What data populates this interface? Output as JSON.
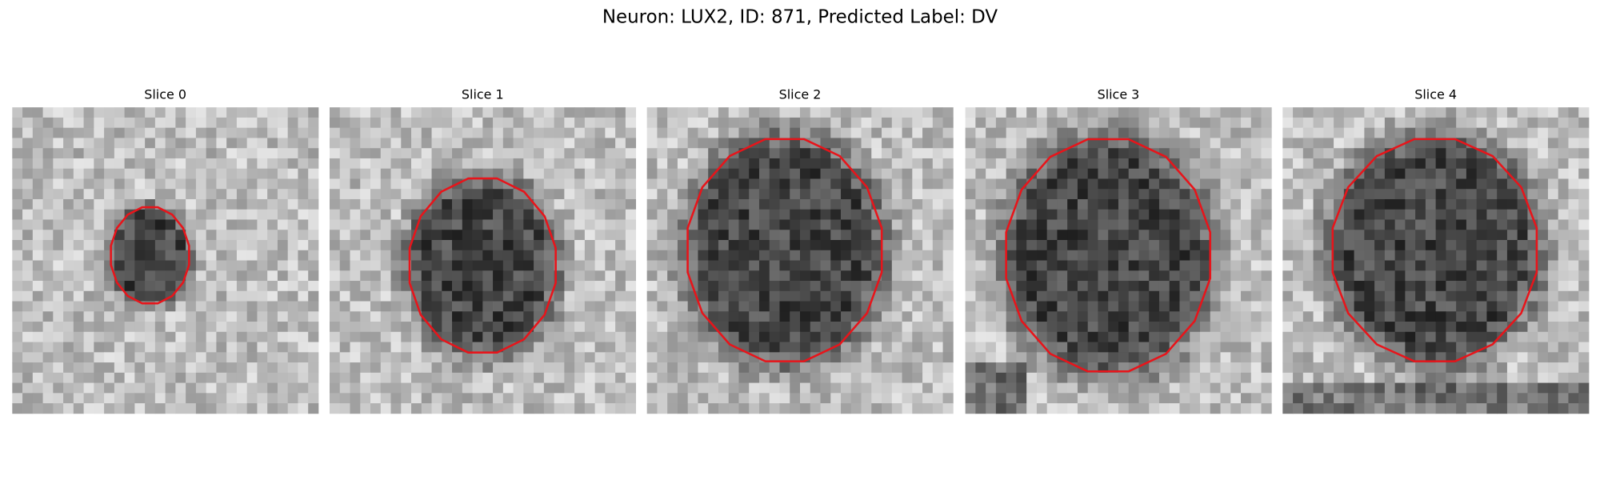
{
  "title": "Neuron: LUX2, ID: 871, Predicted Label: DV",
  "panels": [
    {
      "title": "Slice 0"
    },
    {
      "title": "Slice 1"
    },
    {
      "title": "Slice 2"
    },
    {
      "title": "Slice 3"
    },
    {
      "title": "Slice 4"
    }
  ]
}
